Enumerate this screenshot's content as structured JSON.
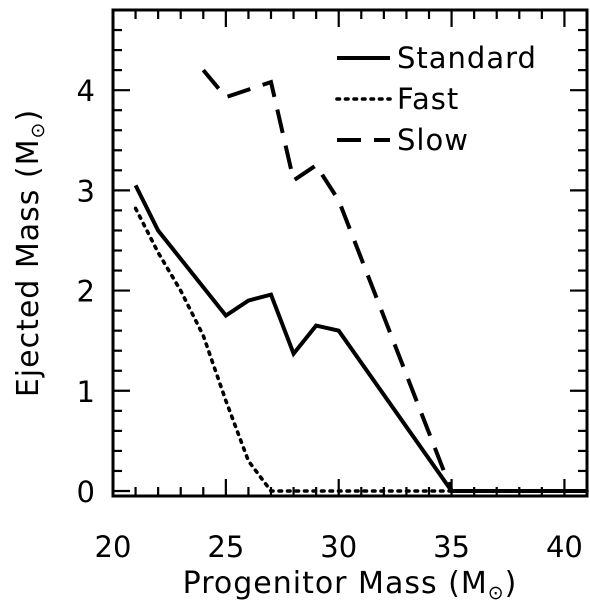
{
  "chart_data": {
    "type": "line",
    "title": "",
    "xlabel": "Progenitor Mass (M",
    "ylabel": "Ejected Mass (M",
    "label_suffix": ")",
    "xlim": [
      20,
      41
    ],
    "ylim": [
      -0.05,
      4.8
    ],
    "xticks": [
      20,
      25,
      30,
      35,
      40
    ],
    "yticks": [
      0,
      1,
      2,
      3,
      4
    ],
    "legend_position": "top-right",
    "series": [
      {
        "name": "Standard",
        "style": "solid",
        "x": [
          21,
          22,
          25,
          26,
          27,
          28,
          29,
          30,
          35,
          41
        ],
        "y": [
          3.05,
          2.6,
          1.75,
          1.9,
          1.96,
          1.37,
          1.65,
          1.6,
          0.0,
          0.0
        ]
      },
      {
        "name": "Fast",
        "style": "dotted",
        "x": [
          21,
          22,
          23,
          24,
          25,
          26,
          27,
          35,
          41
        ],
        "y": [
          2.82,
          2.38,
          2.0,
          1.55,
          0.9,
          0.3,
          0.0,
          0.0,
          0.0
        ]
      },
      {
        "name": "Slow",
        "style": "dashed",
        "x": [
          24,
          25,
          27,
          28,
          29,
          30,
          35,
          41
        ],
        "y": [
          4.2,
          3.93,
          4.08,
          3.1,
          3.25,
          2.9,
          0.0,
          0.0
        ]
      }
    ]
  }
}
